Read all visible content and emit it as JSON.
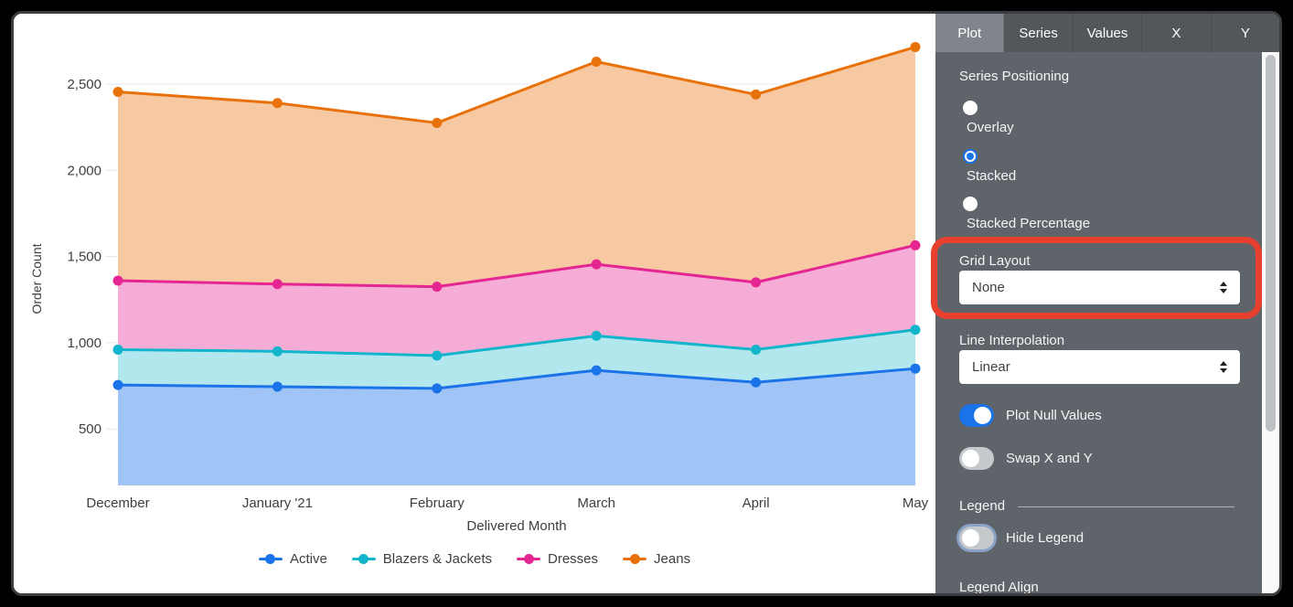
{
  "panel": {
    "tabs": [
      {
        "label": "Plot",
        "active": true
      },
      {
        "label": "Series",
        "active": false
      },
      {
        "label": "Values",
        "active": false
      },
      {
        "label": "X",
        "active": false
      },
      {
        "label": "Y",
        "active": false
      }
    ],
    "series_positioning": {
      "label": "Series Positioning",
      "options": [
        {
          "label": "Overlay",
          "selected": false
        },
        {
          "label": "Stacked",
          "selected": true
        },
        {
          "label": "Stacked Percentage",
          "selected": false
        }
      ]
    },
    "grid_layout": {
      "label": "Grid Layout",
      "value": "None"
    },
    "line_interpolation": {
      "label": "Line Interpolation",
      "value": "Linear"
    },
    "toggles": [
      {
        "label": "Plot Null Values",
        "on": true
      },
      {
        "label": "Swap X and Y",
        "on": false
      }
    ],
    "legend_section": {
      "header": "Legend",
      "hide_legend": {
        "label": "Hide Legend",
        "on": false
      },
      "legend_align_label": "Legend Align"
    }
  },
  "annotation": {
    "type": "highlight-box",
    "target": "Grid Layout",
    "color": "#e8402e"
  },
  "chart_data": {
    "type": "area",
    "stacking": "stacked",
    "x_categories": [
      "December",
      "January '21",
      "February",
      "March",
      "April",
      "May"
    ],
    "xlabel": "Delivered Month",
    "ylabel": "Order Count",
    "yticks": [
      {
        "value": 500,
        "label": "500"
      },
      {
        "value": 1000,
        "label": "1,000"
      },
      {
        "value": 1500,
        "label": "1,500"
      },
      {
        "value": 2000,
        "label": "2,000"
      },
      {
        "value": 2500,
        "label": "2,500"
      }
    ],
    "grid": "horizontal",
    "legend_position": "bottom",
    "series": [
      {
        "name": "Active",
        "color": "#1a73e8",
        "fill": "#9fc4f5",
        "values": [
          755,
          745,
          735,
          840,
          770,
          850
        ]
      },
      {
        "name": "Blazers & Jackets",
        "color": "#12b5cb",
        "fill": "#b3e7ee",
        "values": [
          205,
          205,
          190,
          200,
          190,
          225
        ]
      },
      {
        "name": "Dresses",
        "color": "#e52592",
        "fill": "#f5acd6",
        "values": [
          400,
          390,
          400,
          415,
          390,
          490
        ]
      },
      {
        "name": "Jeans",
        "color": "#e8710a",
        "fill": "#f6c9a2",
        "values": [
          1095,
          1050,
          950,
          1175,
          1090,
          1150
        ]
      }
    ],
    "cumulative_totals": [
      [
        755,
        960,
        1360,
        2455
      ],
      [
        745,
        950,
        1340,
        2390
      ],
      [
        735,
        925,
        1325,
        2275
      ],
      [
        840,
        1040,
        1455,
        2630
      ],
      [
        770,
        960,
        1350,
        2440
      ],
      [
        850,
        1075,
        1565,
        2715
      ]
    ]
  }
}
